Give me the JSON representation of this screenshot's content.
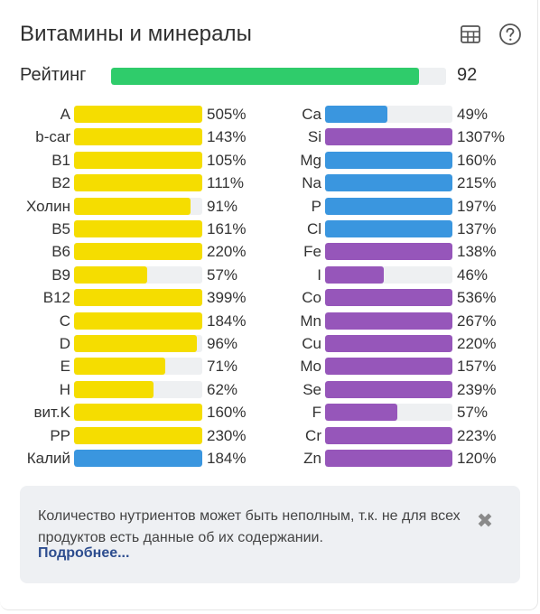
{
  "header": {
    "title": "Витамины и минералы",
    "table_icon": "table-icon",
    "help_icon": "help-icon"
  },
  "rating": {
    "label": "Рейтинг",
    "value": "92",
    "fill_fraction": 0.92,
    "color": "#2fcc6b"
  },
  "colors": {
    "vitamin": "#f5dd00",
    "mineral_blue": "#3a96df",
    "mineral_purple": "#9656ba",
    "track": "#eef0f2"
  },
  "left_column": [
    {
      "name": "A",
      "percent": "505%",
      "fill": 1.0,
      "color": "#f5dd00"
    },
    {
      "name": "b-car",
      "percent": "143%",
      "fill": 1.0,
      "color": "#f5dd00"
    },
    {
      "name": "B1",
      "percent": "105%",
      "fill": 1.0,
      "color": "#f5dd00"
    },
    {
      "name": "B2",
      "percent": "111%",
      "fill": 1.0,
      "color": "#f5dd00"
    },
    {
      "name": "Холин",
      "percent": "91%",
      "fill": 0.91,
      "color": "#f5dd00"
    },
    {
      "name": "B5",
      "percent": "161%",
      "fill": 1.0,
      "color": "#f5dd00"
    },
    {
      "name": "B6",
      "percent": "220%",
      "fill": 1.0,
      "color": "#f5dd00"
    },
    {
      "name": "B9",
      "percent": "57%",
      "fill": 0.57,
      "color": "#f5dd00"
    },
    {
      "name": "B12",
      "percent": "399%",
      "fill": 1.0,
      "color": "#f5dd00"
    },
    {
      "name": "C",
      "percent": "184%",
      "fill": 1.0,
      "color": "#f5dd00"
    },
    {
      "name": "D",
      "percent": "96%",
      "fill": 0.96,
      "color": "#f5dd00"
    },
    {
      "name": "E",
      "percent": "71%",
      "fill": 0.71,
      "color": "#f5dd00"
    },
    {
      "name": "H",
      "percent": "62%",
      "fill": 0.62,
      "color": "#f5dd00"
    },
    {
      "name": "вит.K",
      "percent": "160%",
      "fill": 1.0,
      "color": "#f5dd00"
    },
    {
      "name": "PP",
      "percent": "230%",
      "fill": 1.0,
      "color": "#f5dd00"
    },
    {
      "name": "Калий",
      "percent": "184%",
      "fill": 1.0,
      "color": "#3a96df"
    }
  ],
  "right_column": [
    {
      "name": "Ca",
      "percent": "49%",
      "fill": 0.49,
      "color": "#3a96df"
    },
    {
      "name": "Si",
      "percent": "1307%",
      "fill": 1.0,
      "color": "#9656ba"
    },
    {
      "name": "Mg",
      "percent": "160%",
      "fill": 1.0,
      "color": "#3a96df"
    },
    {
      "name": "Na",
      "percent": "215%",
      "fill": 1.0,
      "color": "#3a96df"
    },
    {
      "name": "P",
      "percent": "197%",
      "fill": 1.0,
      "color": "#3a96df"
    },
    {
      "name": "Cl",
      "percent": "137%",
      "fill": 1.0,
      "color": "#3a96df"
    },
    {
      "name": "Fe",
      "percent": "138%",
      "fill": 1.0,
      "color": "#9656ba"
    },
    {
      "name": "I",
      "percent": "46%",
      "fill": 0.46,
      "color": "#9656ba"
    },
    {
      "name": "Co",
      "percent": "536%",
      "fill": 1.0,
      "color": "#9656ba"
    },
    {
      "name": "Mn",
      "percent": "267%",
      "fill": 1.0,
      "color": "#9656ba"
    },
    {
      "name": "Cu",
      "percent": "220%",
      "fill": 1.0,
      "color": "#9656ba"
    },
    {
      "name": "Mo",
      "percent": "157%",
      "fill": 1.0,
      "color": "#9656ba"
    },
    {
      "name": "Se",
      "percent": "239%",
      "fill": 1.0,
      "color": "#9656ba"
    },
    {
      "name": "F",
      "percent": "57%",
      "fill": 0.57,
      "color": "#9656ba"
    },
    {
      "name": "Cr",
      "percent": "223%",
      "fill": 1.0,
      "color": "#9656ba"
    },
    {
      "name": "Zn",
      "percent": "120%",
      "fill": 1.0,
      "color": "#9656ba"
    }
  ],
  "notice": {
    "text": "Количество нутриентов может быть неполным, т.к. не для всех продуктов есть данные об их содержании.",
    "link": "Подробнее...",
    "close_icon": "close-icon",
    "close_glyph": "✖"
  }
}
